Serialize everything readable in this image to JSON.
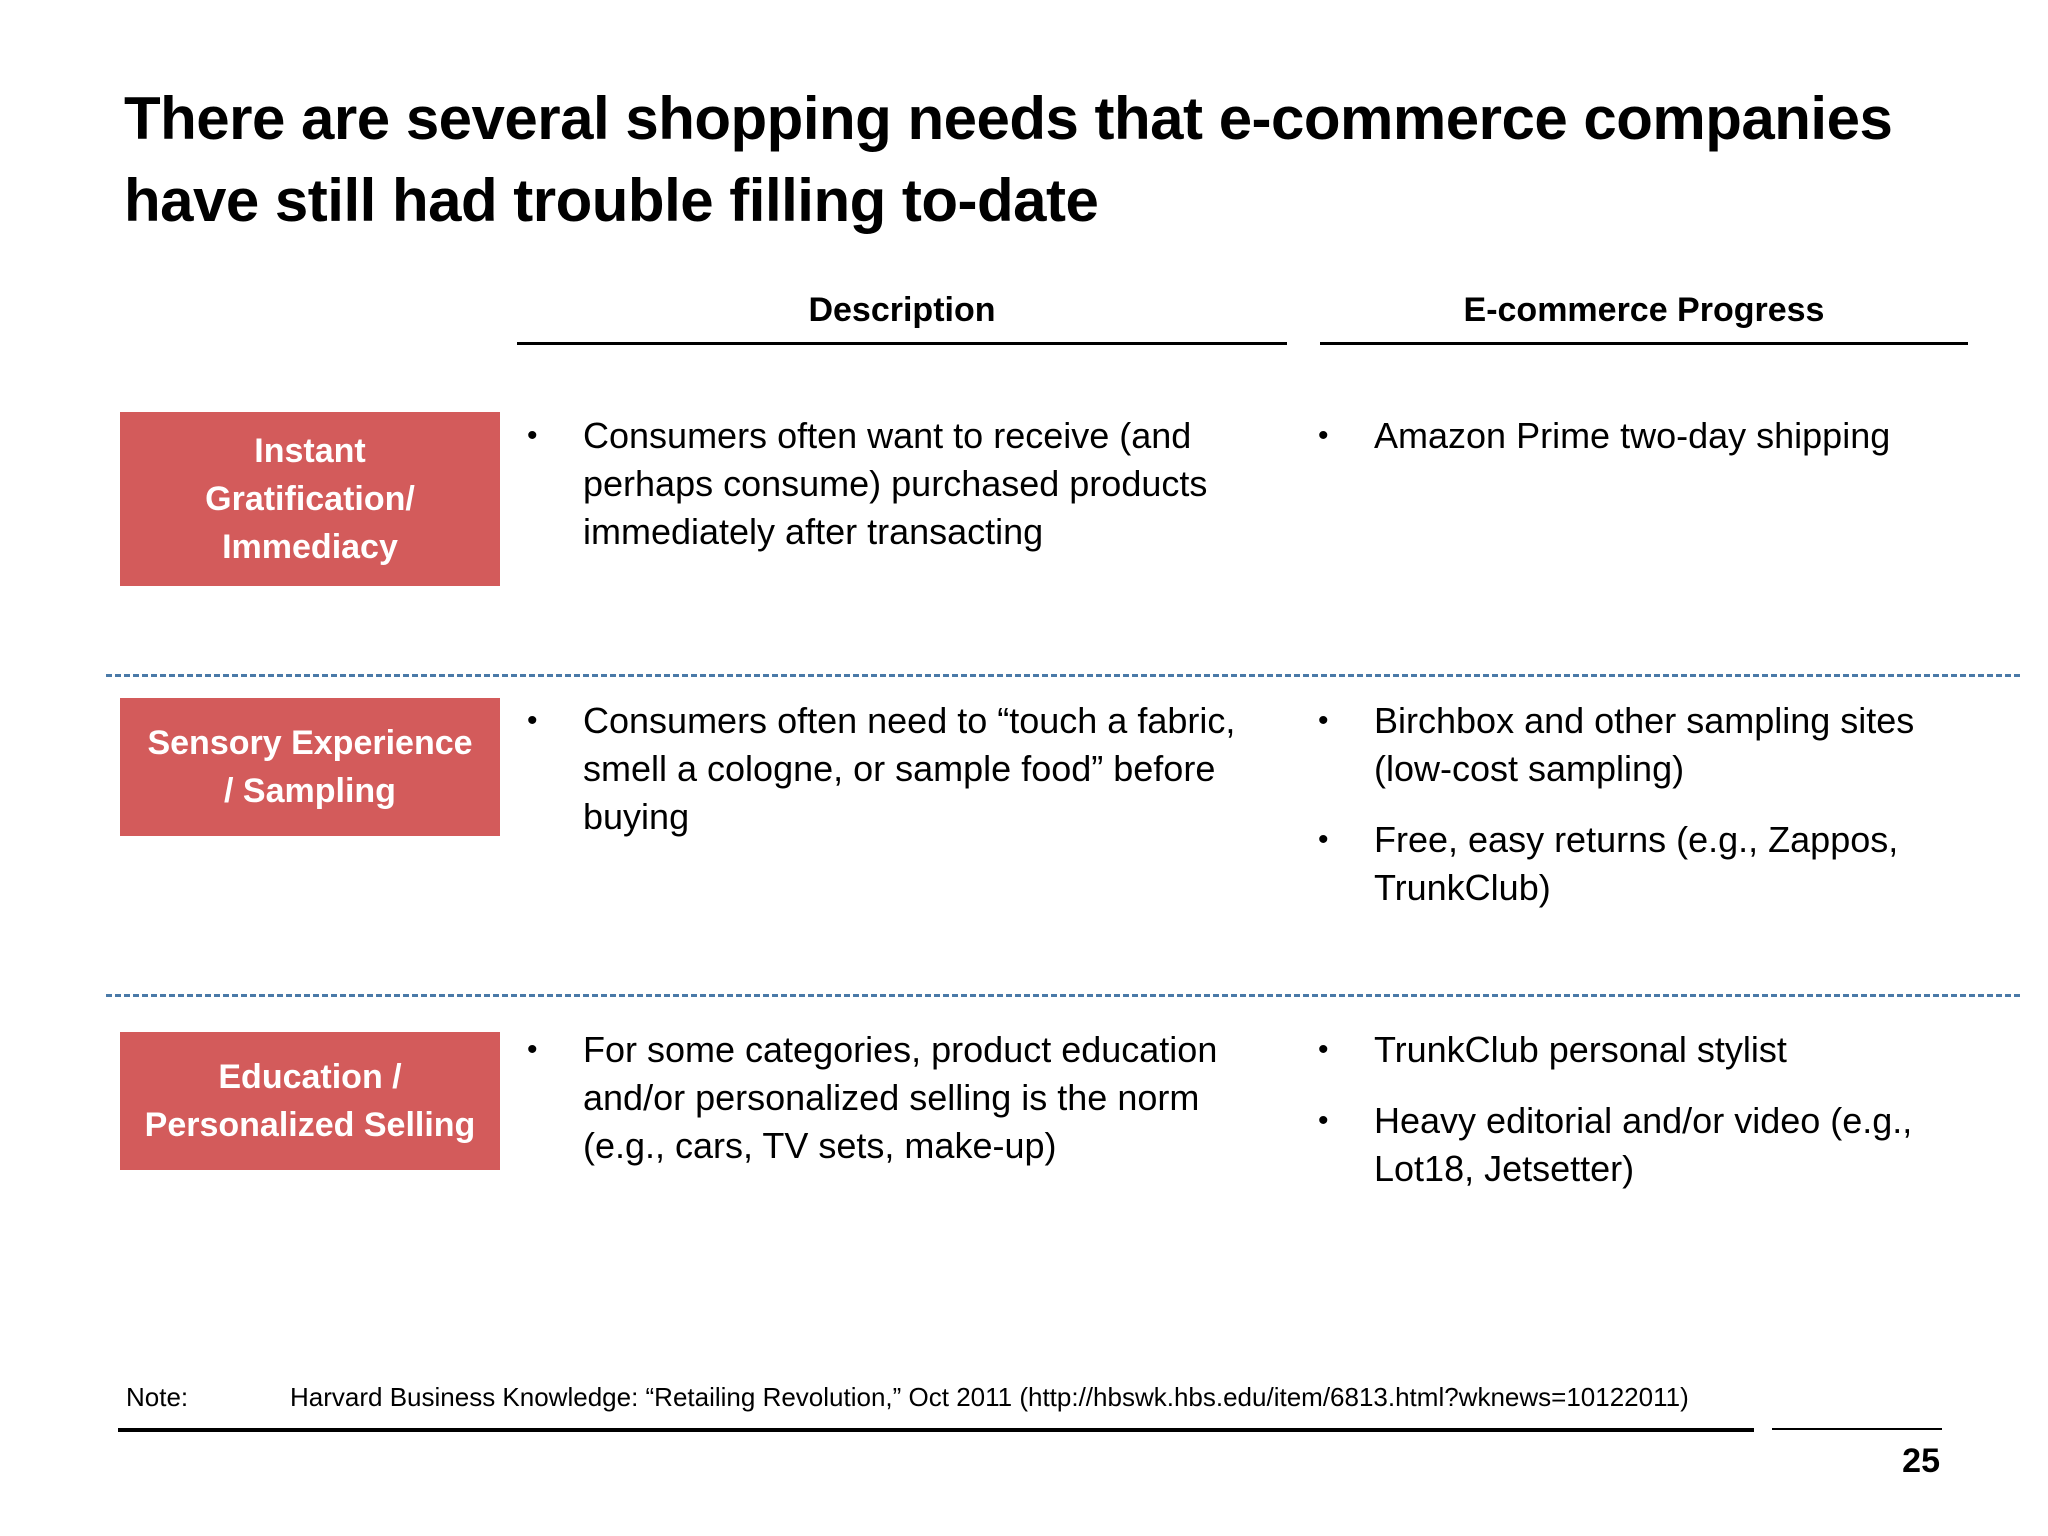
{
  "title": "There are several shopping needs that e-commerce companies have still had trouble filling to-date",
  "columns": {
    "description": "Description",
    "progress": "E-commerce Progress"
  },
  "rows": [
    {
      "need": "Instant\nGratification/\nImmediacy",
      "description": [
        "Consumers often want to receive (and perhaps consume) purchased products immediately after transacting"
      ],
      "progress": [
        "Amazon Prime two-day shipping"
      ]
    },
    {
      "need": "Sensory Experience\n/ Sampling",
      "description": [
        "Consumers often need to “touch a fabric, smell a cologne, or sample food” before buying"
      ],
      "progress": [
        "Birchbox and other sampling sites (low-cost sampling)",
        "Free, easy returns (e.g., Zappos, TrunkClub)"
      ]
    },
    {
      "need": "Education /\nPersonalized Selling",
      "description": [
        "For some categories, product education and/or personalized selling is the norm (e.g., cars, TV sets, make-up)"
      ],
      "progress": [
        "TrunkClub personal stylist",
        "Heavy editorial and/or video (e.g., Lot18, Jetsetter)"
      ]
    }
  ],
  "note": {
    "label": "Note:",
    "text": "Harvard Business Knowledge: “Retailing  Revolution,” Oct 2011 (http://hbswk.hbs.edu/item/6813.html?wknews=10122011)"
  },
  "page_number": "25",
  "colors": {
    "need_box": "#d35b5b",
    "divider": "#4a7aa8"
  }
}
